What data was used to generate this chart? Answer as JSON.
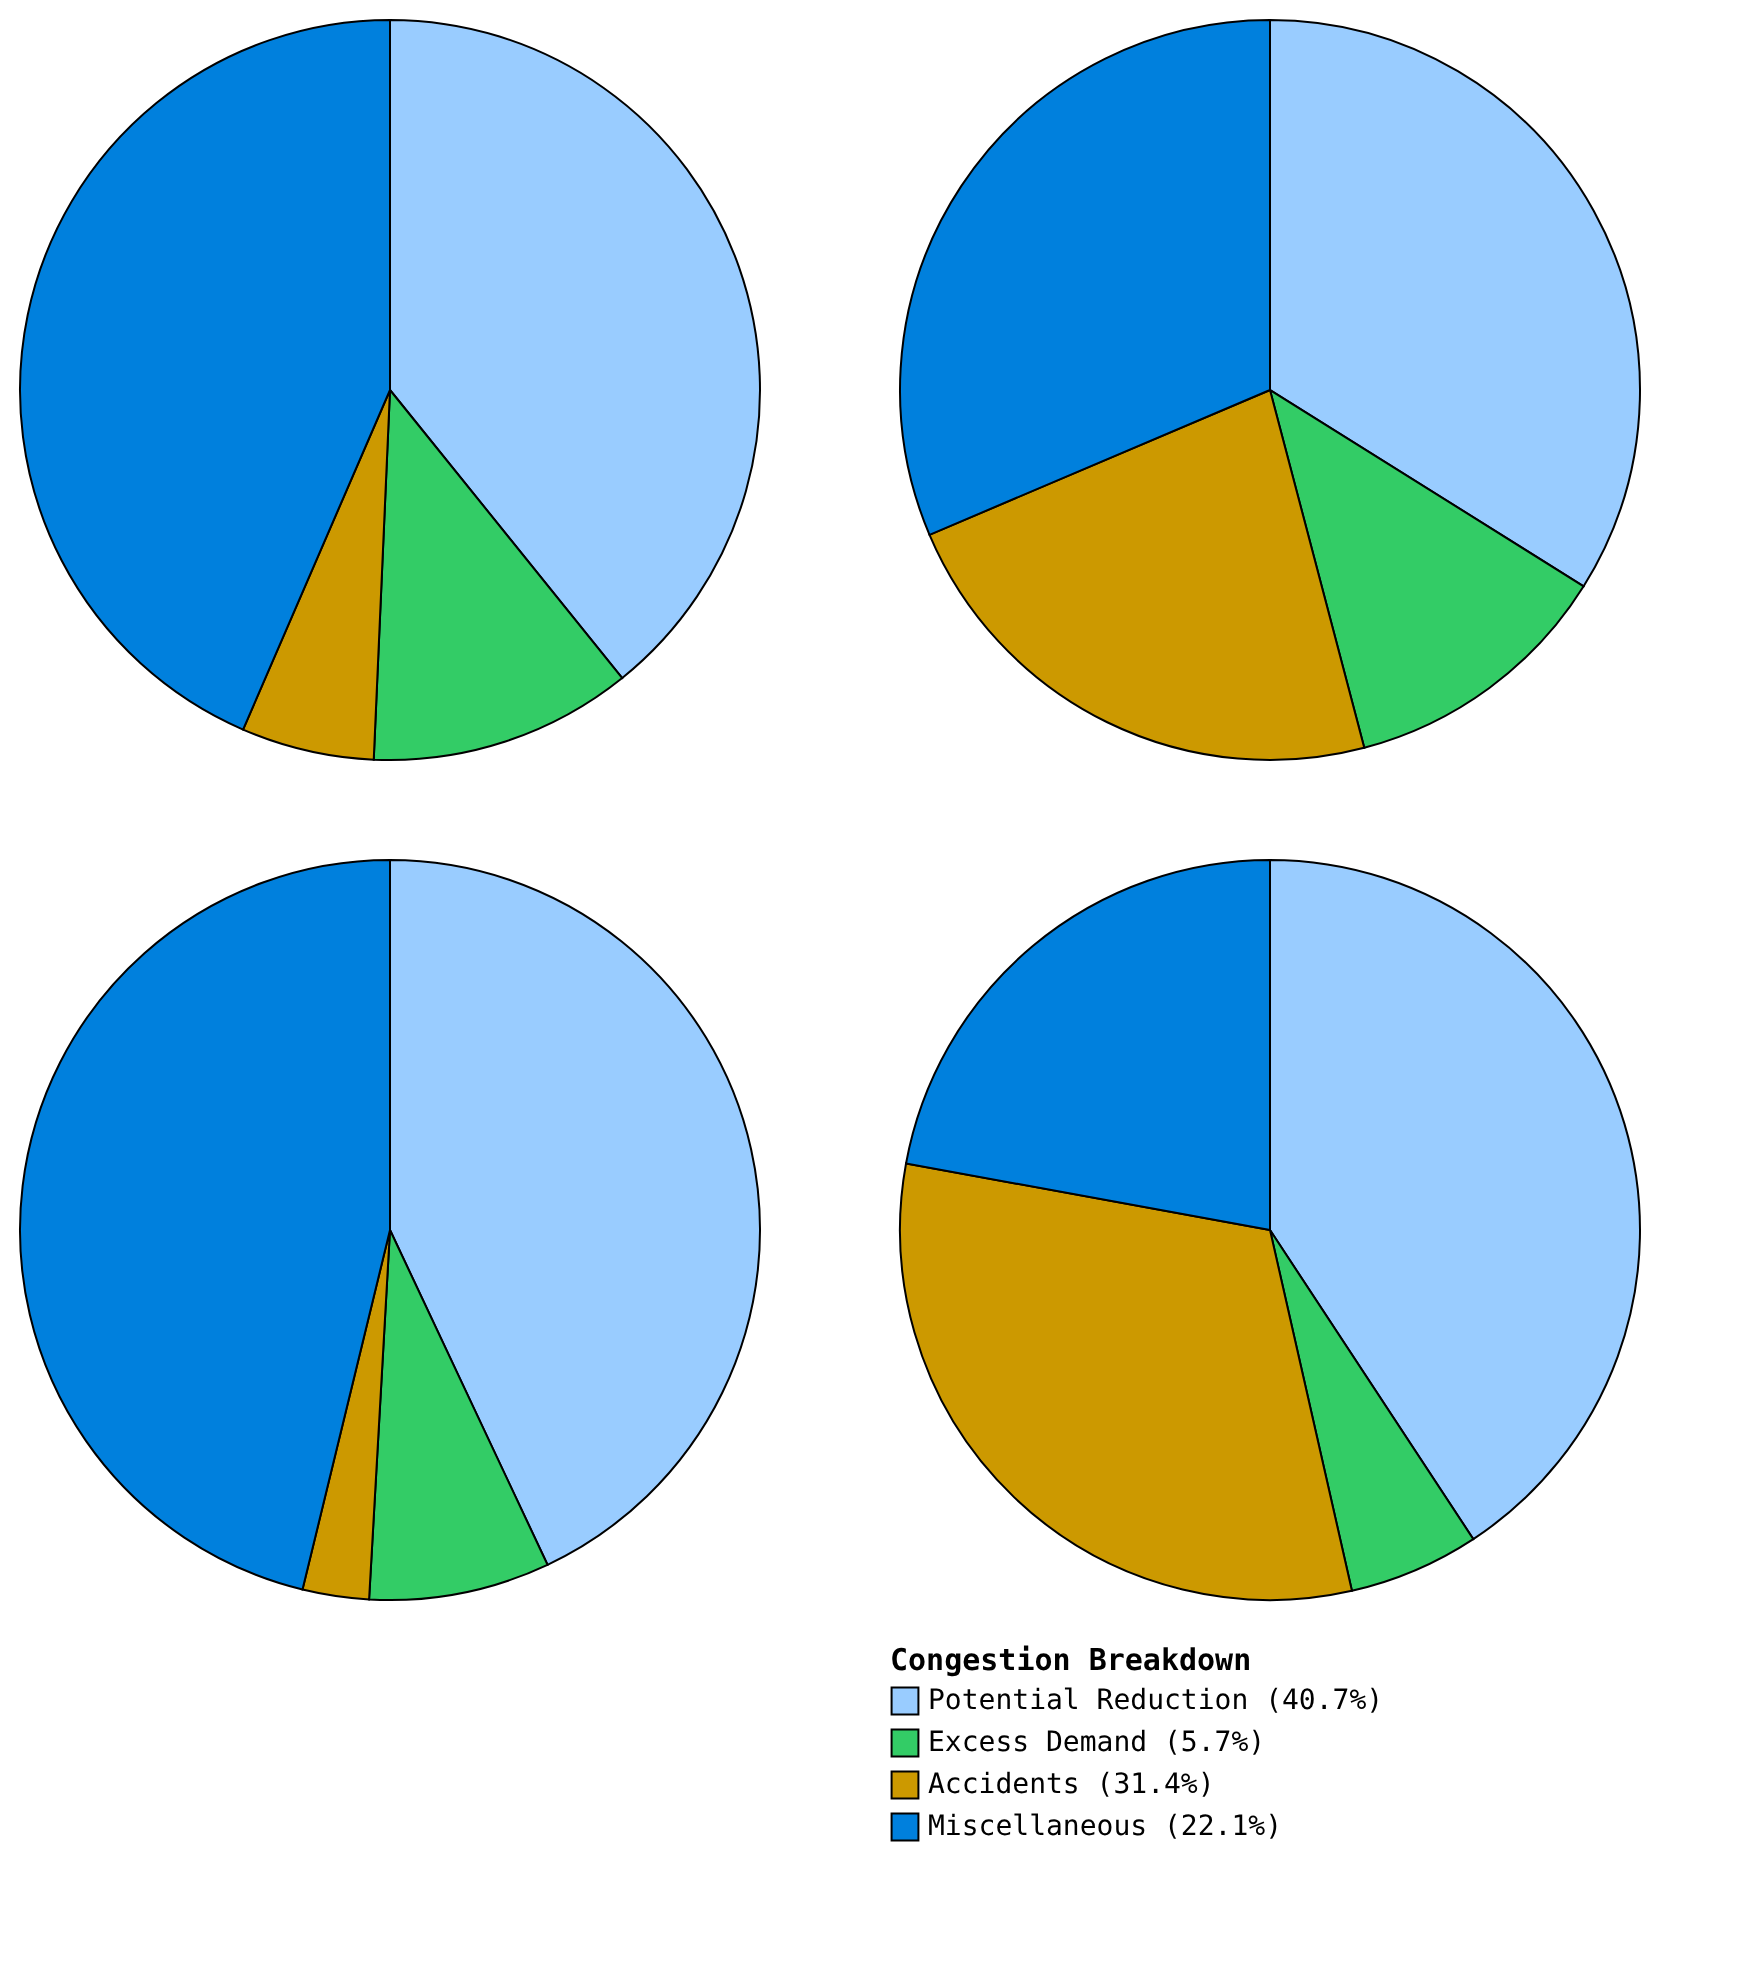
{
  "chart_data": [
    {
      "type": "pie",
      "categories": [
        null,
        null,
        null,
        null
      ],
      "values": [
        39.2,
        11.5,
        5.8,
        43.5
      ],
      "colors": [
        "#99ccff",
        "#33cc66",
        "#cc9900",
        "#0080dd"
      ]
    },
    {
      "type": "pie",
      "categories": [
        null,
        null,
        null,
        null
      ],
      "values": [
        33.9,
        12.0,
        22.7,
        31.4
      ],
      "colors": [
        "#99ccff",
        "#33cc66",
        "#cc9900",
        "#0080dd"
      ]
    },
    {
      "type": "pie",
      "categories": [
        null,
        null,
        null,
        null
      ],
      "values": [
        43.0,
        7.9,
        2.9,
        46.2
      ],
      "colors": [
        "#99ccff",
        "#33cc66",
        "#cc9900",
        "#0080dd"
      ]
    },
    {
      "type": "pie",
      "categories": [
        "Potential Reduction (40.7%)",
        "Excess Demand (5.7%)",
        "Accidents (31.4%)",
        "Miscellaneous (22.1%)"
      ],
      "values": [
        40.7,
        5.7,
        31.4,
        22.1
      ],
      "colors": [
        "#99ccff",
        "#33cc66",
        "#cc9900",
        "#0080dd"
      ],
      "legend": "bottom",
      "legend_title": "Congestion Breakdown"
    }
  ]
}
